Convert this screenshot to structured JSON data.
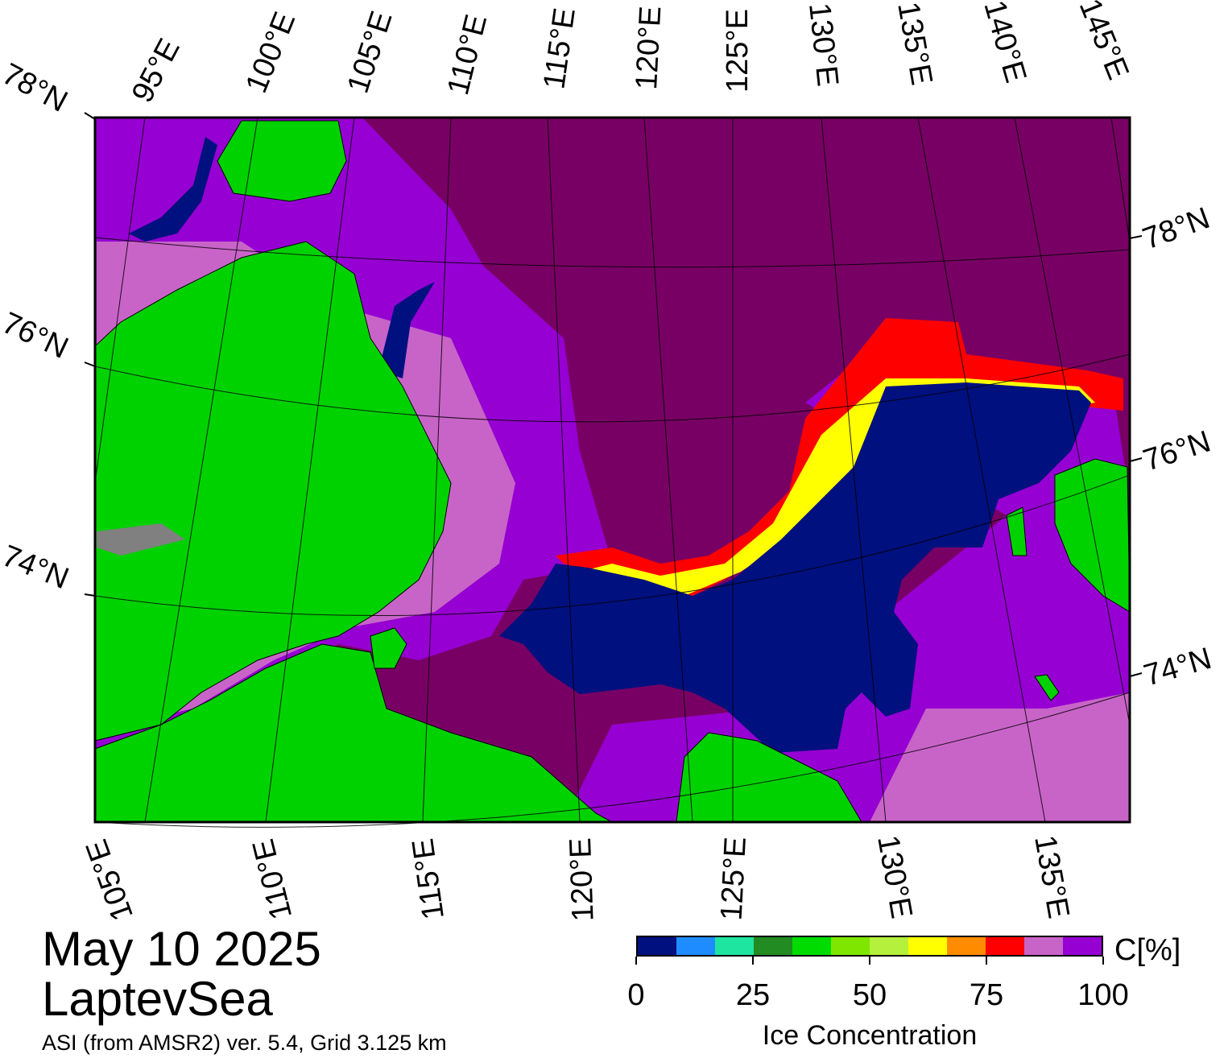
{
  "title": {
    "date": "May 10 2025",
    "region": "LaptevSea"
  },
  "product": "ASI (from AMSR2) ver. 5.4,  Grid 3.125 km",
  "top_lon_labels": [
    "95°E",
    "100°E",
    "105°E",
    "110°E",
    "115°E",
    "120°E",
    "125°E",
    "130°E",
    "135°E",
    "140°E",
    "145°E"
  ],
  "bottom_lon_labels": [
    "105°E",
    "110°E",
    "115°E",
    "120°E",
    "125°E",
    "130°E",
    "135°E"
  ],
  "left_lat_labels": [
    "78°N",
    "76°N",
    "74°N"
  ],
  "right_lat_labels": [
    "78°N",
    "76°N",
    "74°N"
  ],
  "colorbar": {
    "label": "Ice Concentration",
    "unit": "C[%]",
    "ticks": [
      "0",
      "25",
      "50",
      "75",
      "100"
    ],
    "colors": [
      "#00107f",
      "#1e8cff",
      "#1ee6a0",
      "#228b22",
      "#00dc00",
      "#7fe600",
      "#b4f03c",
      "#ffff00",
      "#ff8c00",
      "#ff0000",
      "#c864c8",
      "#9600d2"
    ]
  },
  "legend_colors": {
    "land": "#00d200",
    "land_ice_mask": "#808080",
    "full_ice": "#780064"
  }
}
